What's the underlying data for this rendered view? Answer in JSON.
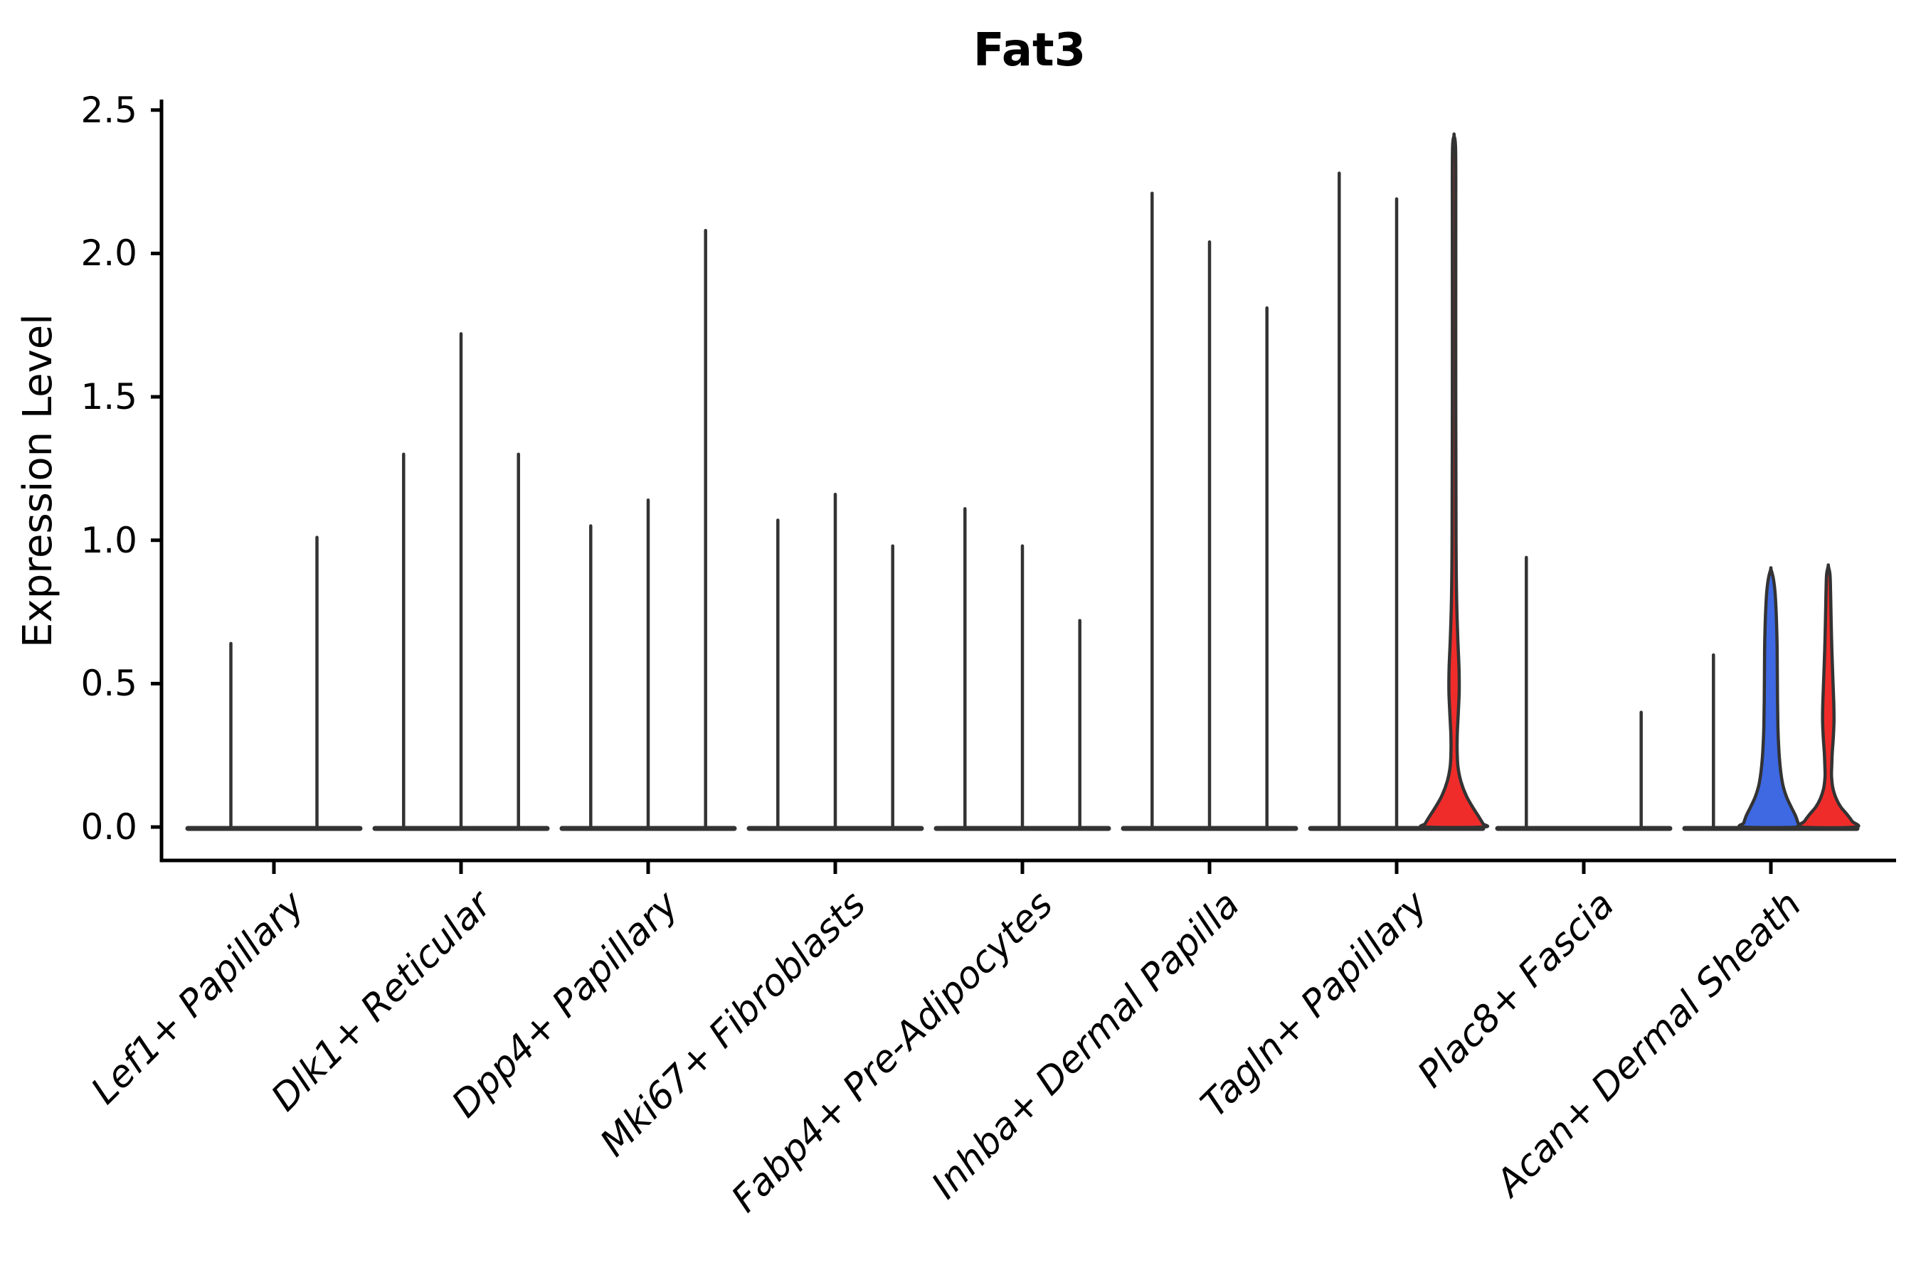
{
  "colors": {
    "red": "#F02C2A",
    "blue": "#3E69E3",
    "violin_stroke": "#333333",
    "axis": "#000000"
  },
  "chart_data": {
    "type": "violin",
    "title": "Fat3",
    "ylabel": "Expression Level",
    "xlabel": "",
    "ylim": [
      -0.12,
      2.54
    ],
    "yticks": [
      0.0,
      0.5,
      1.0,
      1.5,
      2.0,
      2.5
    ],
    "ytick_labels": [
      "0.0",
      "0.5",
      "1.0",
      "1.5",
      "2.0",
      "2.5"
    ],
    "grid": false,
    "legend": "none",
    "x_label_rotation": 45,
    "categories": [
      "Lef1+ Papillary",
      "Dlk1+ Reticular",
      "Dpp4+ Papillary",
      "Mki67+ Fibroblasts",
      "Fabp4+ Pre-Adipocytes",
      "Inhba+ Dermal Papilla",
      "Tagln+ Papillary",
      "Plac8+ Fascia",
      "Acan+ Dermal Sheath"
    ],
    "groups": [
      {
        "category": "Lef1+ Papillary",
        "violins": [
          {
            "max": 0.64,
            "fill": "none"
          },
          {
            "max": 1.01,
            "fill": "none"
          }
        ]
      },
      {
        "category": "Dlk1+ Reticular",
        "violins": [
          {
            "max": 1.3,
            "fill": "none"
          },
          {
            "max": 1.72,
            "fill": "none"
          },
          {
            "max": 1.3,
            "fill": "none"
          }
        ]
      },
      {
        "category": "Dpp4+ Papillary",
        "violins": [
          {
            "max": 1.05,
            "fill": "none"
          },
          {
            "max": 1.14,
            "fill": "none"
          },
          {
            "max": 2.08,
            "fill": "none"
          }
        ]
      },
      {
        "category": "Mki67+ Fibroblasts",
        "violins": [
          {
            "max": 1.07,
            "fill": "none"
          },
          {
            "max": 1.16,
            "fill": "none"
          },
          {
            "max": 0.98,
            "fill": "none"
          }
        ]
      },
      {
        "category": "Fabp4+ Pre-Adipocytes",
        "violins": [
          {
            "max": 1.11,
            "fill": "none"
          },
          {
            "max": 0.98,
            "fill": "none"
          },
          {
            "max": 0.72,
            "fill": "none"
          }
        ]
      },
      {
        "category": "Inhba+ Dermal Papilla",
        "violins": [
          {
            "max": 2.21,
            "fill": "none"
          },
          {
            "max": 2.04,
            "fill": "none"
          },
          {
            "max": 1.81,
            "fill": "none"
          }
        ]
      },
      {
        "category": "Tagln+ Papillary",
        "violins": [
          {
            "max": 2.28,
            "fill": "none"
          },
          {
            "max": 2.19,
            "fill": "none"
          },
          {
            "max": 2.41,
            "fill": "red",
            "profile": [
              [
                2.41,
                0
              ],
              [
                2.36,
                2.2
              ],
              [
                2.1,
                2.4
              ],
              [
                1.5,
                2.4
              ],
              [
                1.0,
                2.8
              ],
              [
                0.8,
                3.6
              ],
              [
                0.66,
                5.2
              ],
              [
                0.55,
                7.0
              ],
              [
                0.47,
                7.2
              ],
              [
                0.4,
                6.0
              ],
              [
                0.33,
                4.6
              ],
              [
                0.27,
                4.3
              ],
              [
                0.21,
                5.5
              ],
              [
                0.16,
                9.5
              ],
              [
                0.11,
                17
              ],
              [
                0.07,
                26
              ],
              [
                0.035,
                35
              ],
              [
                0.012,
                40.5
              ],
              [
                0.0,
                41
              ]
            ]
          }
        ]
      },
      {
        "category": "Plac8+ Fascia",
        "violins": [
          {
            "max": 0.94,
            "fill": "none"
          },
          {
            "max": 0.0,
            "fill": "none"
          },
          {
            "max": 0.4,
            "fill": "none"
          }
        ]
      },
      {
        "category": "Acan+ Dermal Sheath",
        "violins": [
          {
            "max": 0.6,
            "fill": "none"
          },
          {
            "max": 0.9,
            "fill": "blue",
            "profile": [
              [
                0.9,
                0
              ],
              [
                0.87,
                3.2
              ],
              [
                0.82,
                5.8
              ],
              [
                0.75,
                7.4
              ],
              [
                0.65,
                8.6
              ],
              [
                0.55,
                9.0
              ],
              [
                0.45,
                9.3
              ],
              [
                0.36,
                9.8
              ],
              [
                0.3,
                10.6
              ],
              [
                0.24,
                12.0
              ],
              [
                0.19,
                14.0
              ],
              [
                0.145,
                17
              ],
              [
                0.105,
                22
              ],
              [
                0.07,
                28.5
              ],
              [
                0.04,
                34.5
              ],
              [
                0.015,
                38
              ],
              [
                0.0,
                39
              ]
            ]
          },
          {
            "max": 0.91,
            "fill": "red",
            "profile": [
              [
                0.91,
                0
              ],
              [
                0.88,
                2.4
              ],
              [
                0.82,
                3.2
              ],
              [
                0.72,
                4.0
              ],
              [
                0.62,
                5.0
              ],
              [
                0.52,
                6.4
              ],
              [
                0.44,
                7.6
              ],
              [
                0.37,
                8.0
              ],
              [
                0.31,
                7.0
              ],
              [
                0.26,
                5.6
              ],
              [
                0.21,
                4.8
              ],
              [
                0.175,
                4.6
              ],
              [
                0.135,
                6.5
              ],
              [
                0.1,
                11
              ],
              [
                0.07,
                17.5
              ],
              [
                0.045,
                26
              ],
              [
                0.02,
                33.5
              ],
              [
                0.0,
                38
              ]
            ]
          }
        ]
      }
    ]
  }
}
